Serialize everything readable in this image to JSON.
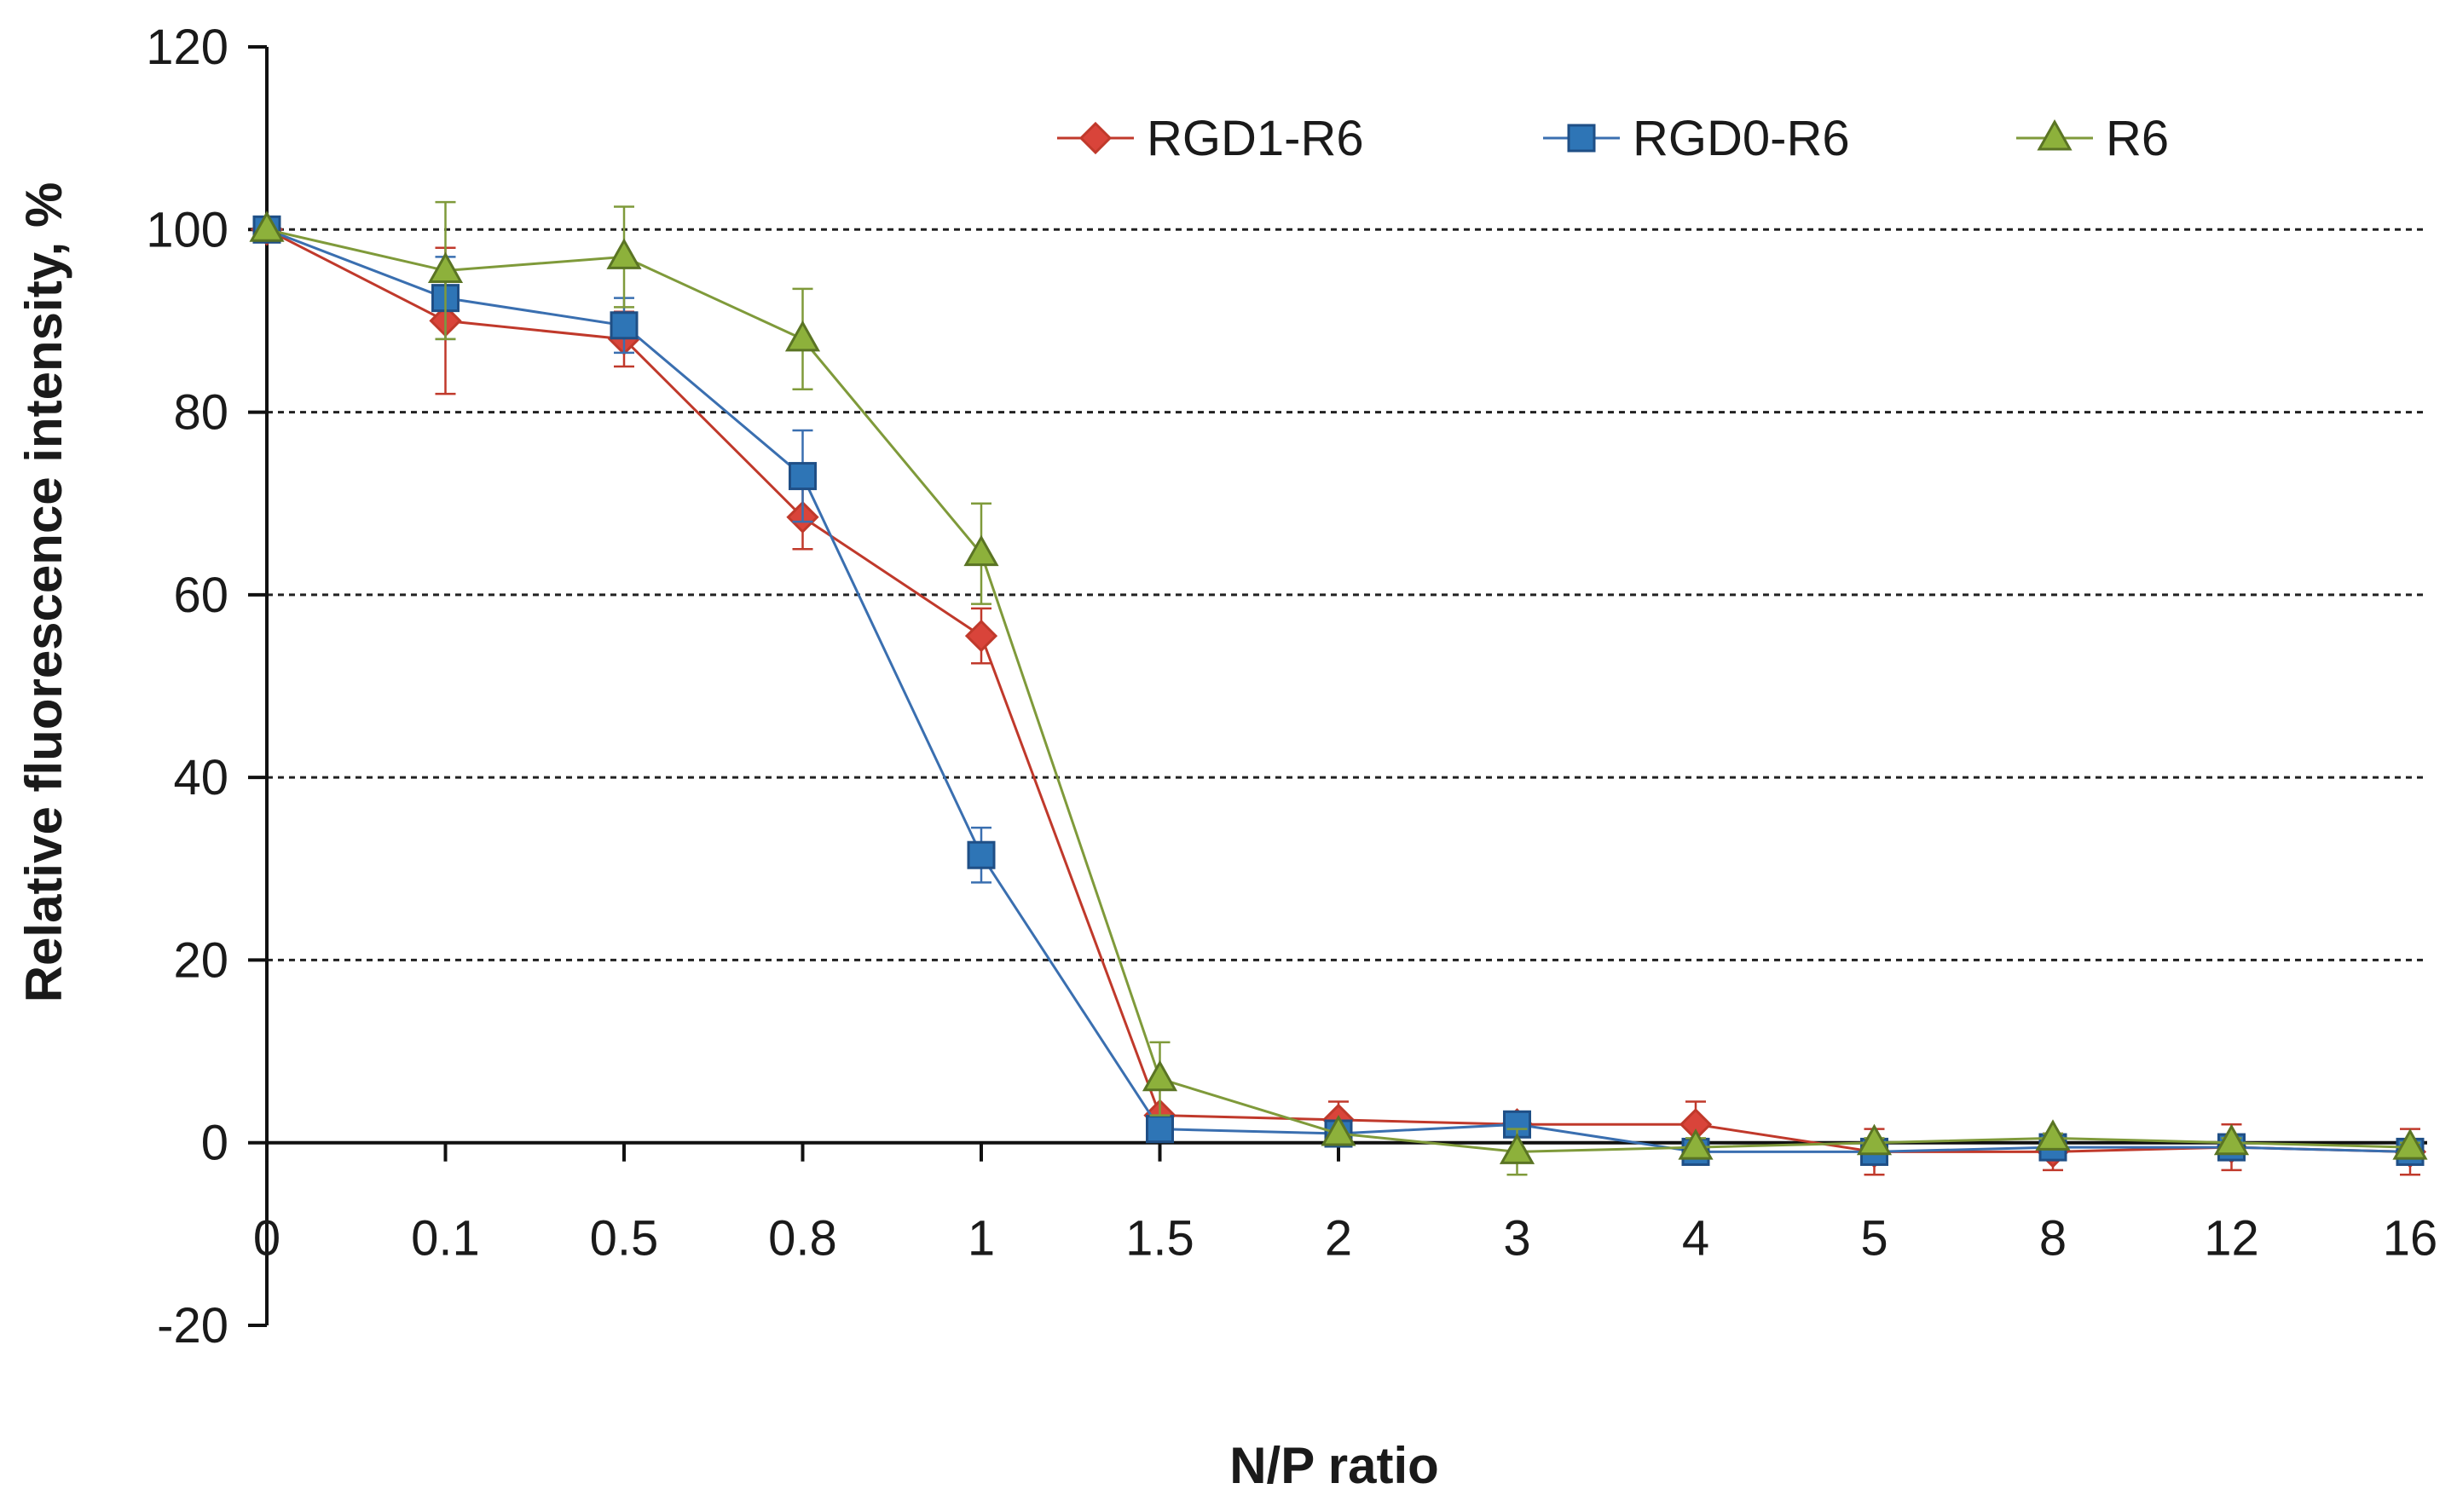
{
  "chart_data": {
    "type": "line",
    "title": "",
    "xlabel": "N/P ratio",
    "ylabel": "Relative fluorescence intensity, %",
    "categories": [
      "0",
      "0.1",
      "0.5",
      "0.8",
      "1",
      "1.5",
      "2",
      "3",
      "4",
      "5",
      "8",
      "12",
      "16"
    ],
    "ylim": [
      -20,
      120
    ],
    "yticks": [
      -20,
      0,
      20,
      40,
      60,
      80,
      100,
      120
    ],
    "grid": "horizontal dashed",
    "legend_position": "top-right",
    "series": [
      {
        "name": "RGD1-R6",
        "marker": "diamond",
        "color": "#c0392b",
        "fill": "#d9443a",
        "values": [
          100,
          90,
          88,
          68.5,
          55.5,
          3,
          2.5,
          2,
          2,
          -1,
          -1,
          -0.5,
          -1
        ],
        "errors": [
          0,
          8,
          3,
          3.5,
          3,
          0.5,
          2,
          0,
          2.5,
          2.5,
          2,
          2.5,
          2.5
        ]
      },
      {
        "name": "RGD0-R6",
        "marker": "square",
        "color": "#3a6fb0",
        "fill": "#2e75b6",
        "values": [
          100,
          92.5,
          89.5,
          73,
          31.5,
          1.5,
          1,
          2,
          -1,
          -1,
          -0.5,
          -0.5,
          -1
        ],
        "errors": [
          0,
          4.5,
          3,
          5,
          3,
          1,
          1,
          0.5,
          1,
          1,
          1,
          1,
          1
        ]
      },
      {
        "name": "R6",
        "marker": "triangle",
        "color": "#7f9a3a",
        "fill": "#8db13b",
        "values": [
          100,
          95.5,
          97,
          88,
          64.5,
          7,
          1,
          -1,
          -0.5,
          0,
          0.5,
          0,
          -0.5
        ],
        "errors": [
          0,
          7.5,
          5.5,
          5.5,
          5.5,
          4,
          0,
          2.5,
          1,
          0.5,
          0.5,
          0.5,
          0.5
        ]
      }
    ]
  }
}
